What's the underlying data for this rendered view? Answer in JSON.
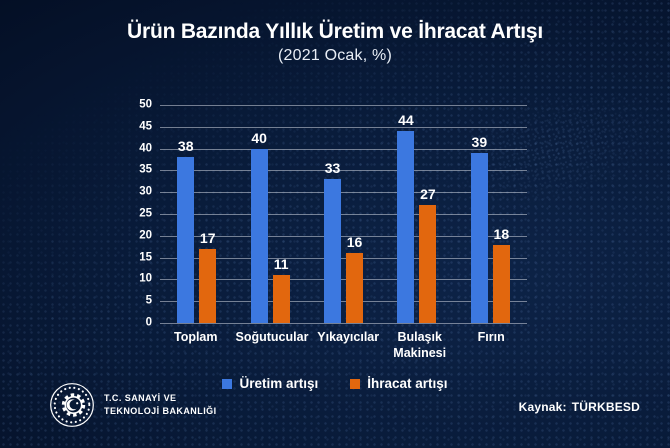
{
  "chart_data": {
    "type": "bar",
    "title": "Ürün Bazında Yıllık Üretim ve İhracat Artışı",
    "subtitle": "(2021 Ocak, %)",
    "categories": [
      "Toplam",
      "Soğutucular",
      "Yıkayıcılar",
      "Bulaşık Makinesi",
      "Fırın"
    ],
    "series": [
      {
        "name": "Üretim artışı",
        "color": "#3c78e0",
        "values": [
          38,
          40,
          33,
          44,
          39
        ]
      },
      {
        "name": "İhracat artışı",
        "color": "#e2670e",
        "values": [
          17,
          11,
          16,
          27,
          18
        ]
      }
    ],
    "xlabel": "",
    "ylabel": "",
    "ylim": [
      0,
      50
    ],
    "yticks": [
      0,
      5,
      10,
      15,
      20,
      25,
      30,
      35,
      40,
      45,
      50
    ],
    "grid": true,
    "legend_position": "bottom"
  },
  "footer": {
    "logo_icon": "gear-crescent-emblem",
    "ministry_line1": "T.C. SANAYİ VE",
    "ministry_line2": "TEKNOLOJİ BAKANLIĞI",
    "source_label": "Kaynak:",
    "source_value": "TÜRKBESD"
  },
  "theme": {
    "background": "#081a38",
    "text": "#ffffff",
    "gridline": "#c8ced9"
  }
}
